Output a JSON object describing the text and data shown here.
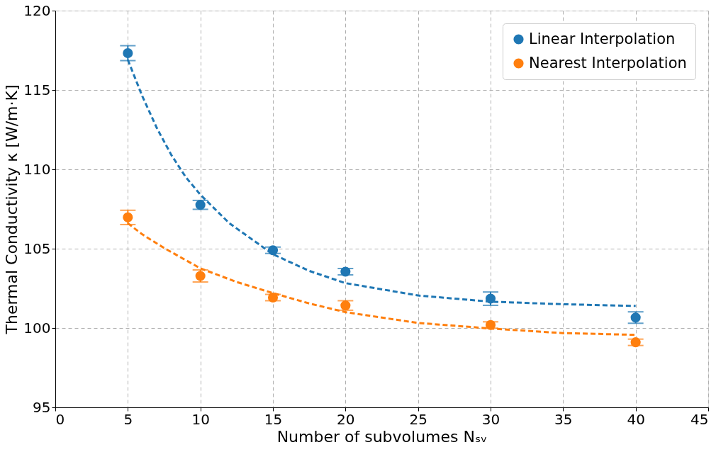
{
  "chart_data": {
    "type": "scatter",
    "xlabel": "Number of subvolumes Nₛᵥ",
    "ylabel": "Thermal Conductivity κ [W/m·K]",
    "xlim": [
      0,
      45
    ],
    "xticks": [
      0,
      5,
      10,
      15,
      20,
      25,
      30,
      35,
      40,
      45
    ],
    "ylim": [
      95,
      120
    ],
    "yticks": [
      95,
      100,
      105,
      110,
      115,
      120
    ],
    "grid": true,
    "legend": "top right",
    "series": [
      {
        "type": "line",
        "marker": "none",
        "line_style": "dashed",
        "color": "#1f77b4",
        "x": [
          5,
          6,
          7,
          8,
          9,
          10,
          12,
          15,
          17.5,
          20,
          25,
          30,
          35,
          40
        ],
        "values": [
          116.9,
          114.6,
          112.6,
          110.9,
          109.5,
          108.4,
          106.6,
          104.65,
          103.6,
          102.83,
          102.05,
          101.66,
          101.5,
          101.39
        ]
      },
      {
        "type": "line",
        "marker": "none",
        "line_style": "dashed",
        "color": "#ff7f0e",
        "x": [
          5,
          6,
          7.5,
          10,
          12.5,
          15,
          17.5,
          20,
          25,
          30,
          35,
          40
        ],
        "values": [
          106.6,
          105.9,
          105.04,
          103.76,
          102.9,
          102.2,
          101.55,
          101.0,
          100.32,
          99.97,
          99.68,
          99.57
        ]
      },
      {
        "name": "Linear Interpolation",
        "marker": "circle",
        "color": "#1f77b4",
        "x": [
          5,
          10,
          15,
          20,
          30,
          40
        ],
        "values": [
          117.32,
          107.76,
          104.9,
          103.55,
          101.85,
          100.66
        ],
        "errors": [
          0.47,
          0.28,
          0.2,
          0.2,
          0.42,
          0.36
        ]
      },
      {
        "name": "Nearest Interpolation",
        "marker": "circle",
        "color": "#ff7f0e",
        "x": [
          5,
          10,
          15,
          20,
          30,
          40
        ],
        "values": [
          106.97,
          103.28,
          101.92,
          101.42,
          100.19,
          99.1
        ],
        "errors": [
          0.45,
          0.38,
          0.2,
          0.3,
          0.2,
          0.2
        ]
      }
    ]
  }
}
